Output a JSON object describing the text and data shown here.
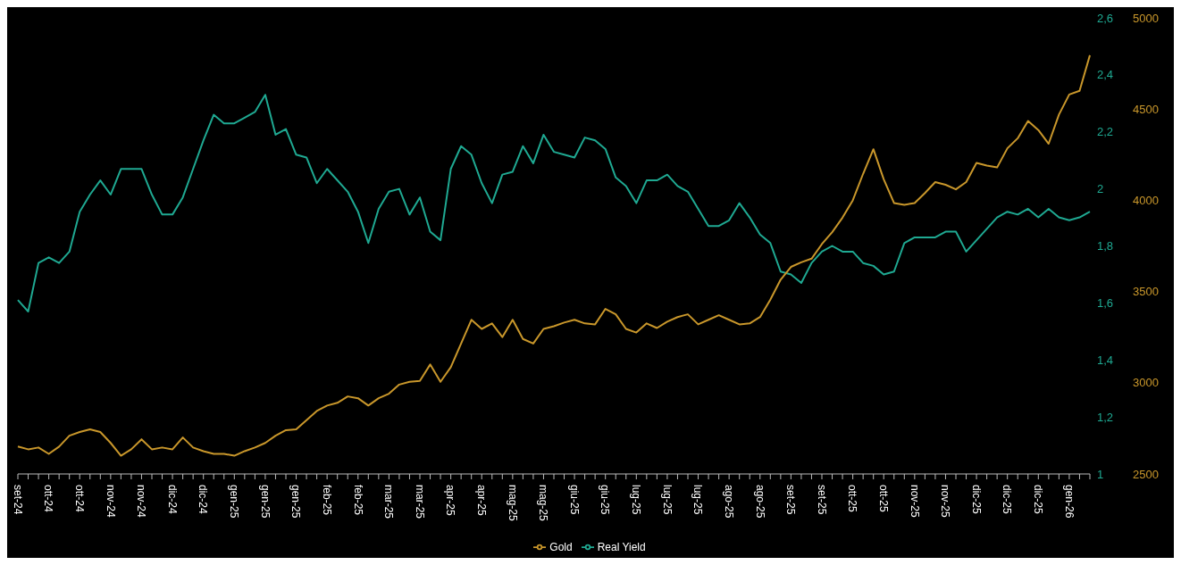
{
  "chart_data": {
    "type": "line",
    "categories": [
      "set-24",
      null,
      null,
      "ott-24",
      null,
      null,
      "ott-24",
      null,
      null,
      "nov-24",
      null,
      null,
      "nov-24",
      null,
      null,
      "dic-24",
      null,
      null,
      "dic-24",
      null,
      null,
      "gen-25",
      null,
      null,
      "gen-25",
      null,
      null,
      "gen-25",
      null,
      null,
      "feb-25",
      null,
      null,
      "feb-25",
      null,
      null,
      "mar-25",
      null,
      null,
      "mar-25",
      null,
      null,
      "apr-25",
      null,
      null,
      "apr-25",
      null,
      null,
      "mag-25",
      null,
      null,
      "mag-25",
      null,
      null,
      "giu-25",
      null,
      null,
      "giu-25",
      null,
      null,
      "lug-25",
      null,
      null,
      "lug-25",
      null,
      null,
      "lug-25",
      null,
      null,
      "ago-25",
      null,
      null,
      "ago-25",
      null,
      null,
      "set-25",
      null,
      null,
      "set-25",
      null,
      null,
      "ott-25",
      null,
      null,
      "ott-25",
      null,
      null,
      "nov-25",
      null,
      null,
      "nov-25",
      null,
      null,
      "dic-25",
      null,
      null,
      "dic-25",
      null,
      null,
      "dic-25",
      null,
      null,
      "gen-26",
      null,
      null
    ],
    "series": [
      {
        "name": "Real Yield",
        "color": "#1fa992",
        "axis": "y",
        "values": [
          1.61,
          1.57,
          1.74,
          1.76,
          1.74,
          1.78,
          1.92,
          1.98,
          2.03,
          1.98,
          2.07,
          2.07,
          2.07,
          1.98,
          1.91,
          1.91,
          1.97,
          2.07,
          2.17,
          2.26,
          2.23,
          2.23,
          2.25,
          2.27,
          2.33,
          2.19,
          2.21,
          2.12,
          2.11,
          2.02,
          2.07,
          2.03,
          1.99,
          1.92,
          1.81,
          1.93,
          1.99,
          2.0,
          1.91,
          1.97,
          1.85,
          1.82,
          2.07,
          2.15,
          2.12,
          2.02,
          1.95,
          2.05,
          2.06,
          2.15,
          2.09,
          2.19,
          2.13,
          2.12,
          2.11,
          2.18,
          2.17,
          2.14,
          2.04,
          2.01,
          1.95,
          2.03,
          2.03,
          2.05,
          2.01,
          1.99,
          1.93,
          1.87,
          1.87,
          1.89,
          1.95,
          1.9,
          1.84,
          1.81,
          1.71,
          1.7,
          1.67,
          1.74,
          1.78,
          1.8,
          1.78,
          1.78,
          1.74,
          1.73,
          1.7,
          1.71,
          1.81,
          1.83,
          1.83,
          1.83,
          1.85,
          1.85,
          1.78,
          1.82,
          1.86,
          1.9,
          1.92,
          1.91,
          1.93,
          1.9,
          1.93,
          1.9,
          1.89,
          1.9,
          1.92
        ]
      },
      {
        "name": "Gold",
        "color": "#c9972b",
        "axis": "y2",
        "values": [
          2650,
          2635,
          2645,
          2610,
          2650,
          2710,
          2730,
          2745,
          2730,
          2670,
          2600,
          2635,
          2690,
          2635,
          2645,
          2635,
          2700,
          2645,
          2625,
          2610,
          2610,
          2600,
          2625,
          2645,
          2670,
          2710,
          2740,
          2745,
          2795,
          2845,
          2875,
          2890,
          2925,
          2915,
          2875,
          2915,
          2940,
          2990,
          3005,
          3010,
          3100,
          3005,
          3085,
          3215,
          3345,
          3295,
          3325,
          3250,
          3345,
          3240,
          3215,
          3295,
          3310,
          3330,
          3345,
          3325,
          3320,
          3405,
          3375,
          3295,
          3275,
          3325,
          3300,
          3335,
          3360,
          3375,
          3320,
          3345,
          3370,
          3345,
          3320,
          3325,
          3360,
          3455,
          3565,
          3635,
          3660,
          3680,
          3760,
          3825,
          3905,
          4000,
          4145,
          4280,
          4115,
          3985,
          3975,
          3985,
          4040,
          4100,
          4085,
          4060,
          4100,
          4205,
          4190,
          4180,
          4285,
          4340,
          4435,
          4385,
          4310,
          4470,
          4580,
          4600,
          4795
        ]
      }
    ],
    "ylim": [
      1,
      2.6
    ],
    "yticks": [
      1,
      {
        "value": 1.2,
        "label": "1,2"
      },
      {
        "value": 1.4,
        "label": "1,4"
      },
      {
        "value": 1.6,
        "label": "1,6"
      },
      {
        "value": 1.8,
        "label": "1,8"
      },
      2,
      {
        "value": 2.2,
        "label": "2,2"
      },
      {
        "value": 2.4,
        "label": "2,4"
      },
      {
        "value": 2.6,
        "label": "2,6"
      }
    ],
    "y2lim": [
      2500,
      5000
    ],
    "y2ticks": [
      2500,
      3000,
      3500,
      4000,
      4500,
      5000
    ],
    "legend": "bottom",
    "marker": "none",
    "line_style": "solid"
  }
}
